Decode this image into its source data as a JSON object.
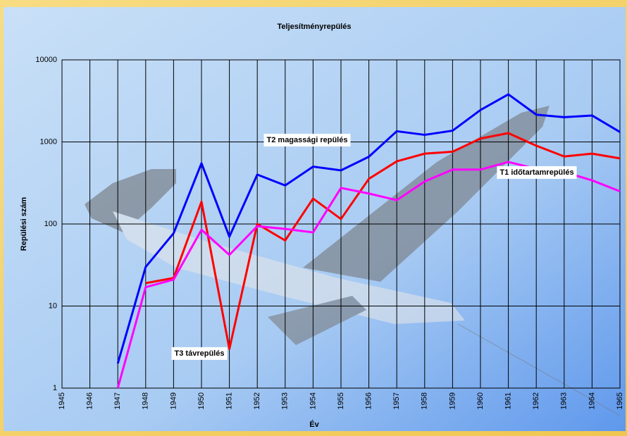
{
  "chart_data": {
    "type": "line",
    "title": "Teljesítményrepülés",
    "x_label": "Év",
    "y_label": "Repülési szám",
    "x": [
      1945,
      1946,
      1947,
      1948,
      1949,
      1950,
      1951,
      1952,
      1953,
      1954,
      1955,
      1956,
      1957,
      1958,
      1959,
      1960,
      1961,
      1962,
      1963,
      1964,
      1965
    ],
    "xlim": [
      1945,
      1965
    ],
    "xticks": [
      1945,
      1946,
      1947,
      1948,
      1949,
      1950,
      1951,
      1952,
      1953,
      1954,
      1955,
      1956,
      1957,
      1958,
      1959,
      1960,
      1961,
      1962,
      1963,
      1964,
      1965
    ],
    "ylim": [
      1,
      10000
    ],
    "yticks": [
      1,
      10,
      100,
      1000,
      10000
    ],
    "log_y": true,
    "grid": true,
    "series": [
      {
        "name": "T2 magassági repülés",
        "color": "#0000ff",
        "values": [
          null,
          null,
          2,
          30,
          77,
          550,
          70,
          400,
          295,
          500,
          450,
          660,
          1350,
          1220,
          1370,
          2450,
          3800,
          2150,
          2000,
          2100,
          1320
        ]
      },
      {
        "name": "T3 távrepülés",
        "color": "#ff0000",
        "values": [
          null,
          null,
          null,
          19,
          22,
          187,
          3,
          100,
          63,
          204,
          115,
          355,
          580,
          720,
          760,
          1100,
          1280,
          900,
          665,
          720,
          630
        ]
      },
      {
        "name": "T1 időtartamrepülés",
        "color": "#ff00ff",
        "values": [
          null,
          null,
          1,
          17,
          21,
          85,
          42,
          94,
          87,
          79,
          275,
          235,
          195,
          330,
          460,
          460,
          570,
          470,
          430,
          340,
          250
        ]
      }
    ]
  }
}
